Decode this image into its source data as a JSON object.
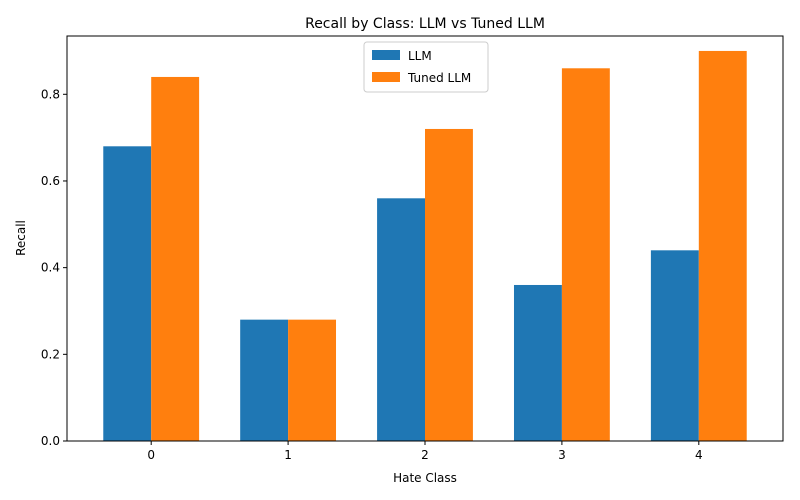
{
  "chart_data": {
    "type": "bar",
    "title": "Recall by Class: LLM vs Tuned LLM",
    "xlabel": "Hate Class",
    "ylabel": "Recall",
    "categories": [
      "0",
      "1",
      "2",
      "3",
      "4"
    ],
    "series": [
      {
        "name": "LLM",
        "values": [
          0.68,
          0.28,
          0.56,
          0.36,
          0.44
        ],
        "color": "#1f77b4"
      },
      {
        "name": "Tuned LLM",
        "values": [
          0.84,
          0.28,
          0.72,
          0.86,
          0.9
        ],
        "color": "#ff7f0e"
      }
    ],
    "ylim": [
      0,
      0.9345
    ],
    "yticks": [
      0.0,
      0.2,
      0.4,
      0.6,
      0.8
    ],
    "ytick_labels": [
      "0.0",
      "0.2",
      "0.4",
      "0.6",
      "0.8"
    ],
    "grid": false,
    "legend_position": "top-center"
  }
}
